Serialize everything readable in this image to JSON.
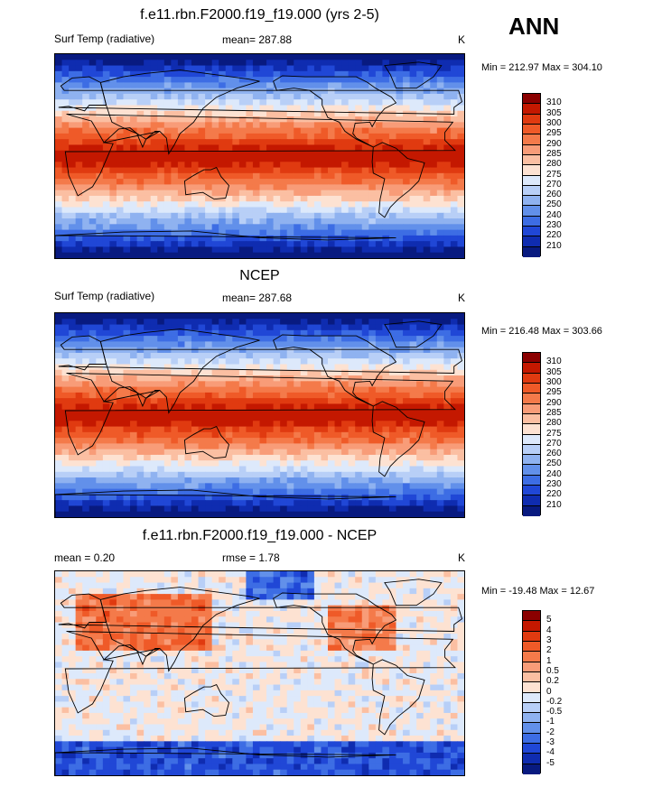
{
  "season": "ANN",
  "panels": [
    {
      "title": "f.e11.rbn.F2000.f19_f19.000 (yrs 2-5)",
      "left_label": "Surf Temp (radiative)",
      "center_label": "mean= 287.88",
      "units": "K",
      "minmax": "Min = 212.97 Max = 304.10",
      "kind": "temp",
      "seed": 1
    },
    {
      "title": "NCEP",
      "left_label": "Surf Temp (radiative)",
      "center_label": "mean= 287.68",
      "units": "K",
      "minmax": "Min = 216.48 Max = 303.66",
      "kind": "temp",
      "seed": 2
    },
    {
      "title": "f.e11.rbn.F2000.f19_f19.000 - NCEP",
      "left_label": "mean =   0.20",
      "center_label": "rmse =   1.78",
      "units": "K",
      "minmax": "Min = -19.48 Max =  12.67",
      "kind": "diff",
      "seed": 3
    }
  ],
  "colorbars": {
    "temp": {
      "labels": [
        "310",
        "305",
        "300",
        "295",
        "290",
        "285",
        "280",
        "275",
        "270",
        "260",
        "250",
        "240",
        "230",
        "220",
        "210"
      ],
      "colors": [
        "#8b0000",
        "#c41800",
        "#e03a10",
        "#ef5a28",
        "#f47a4a",
        "#f89c78",
        "#fbbfa2",
        "#fde2d2",
        "#dde9fb",
        "#b8cff7",
        "#8fb2f0",
        "#6290ea",
        "#3d6de4",
        "#2047d6",
        "#0f2cb0",
        "#081a80"
      ]
    },
    "diff": {
      "labels": [
        "5",
        "4",
        "3",
        "2",
        "1",
        "0.5",
        "0.2",
        "0",
        "-0.2",
        "-0.5",
        "-1",
        "-2",
        "-3",
        "-4",
        "-5"
      ],
      "colors": [
        "#8b0000",
        "#c41800",
        "#e03a10",
        "#ef5a28",
        "#f47a4a",
        "#f89c78",
        "#fbbfa2",
        "#fde2d2",
        "#dde9fb",
        "#b8cff7",
        "#8fb2f0",
        "#6290ea",
        "#3d6de4",
        "#2047d6",
        "#0f2cb0",
        "#081a80"
      ]
    }
  }
}
